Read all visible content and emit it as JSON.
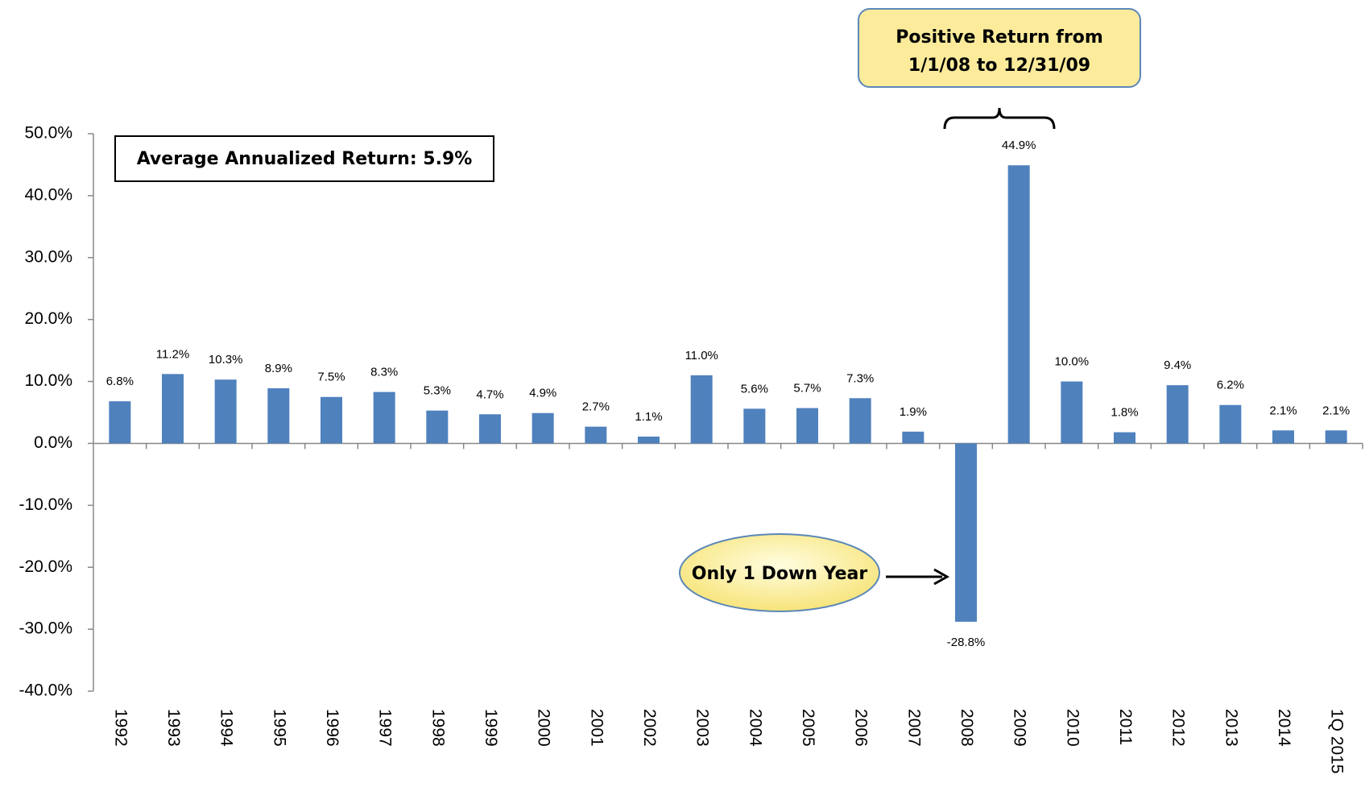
{
  "chart_data": {
    "type": "bar",
    "categories": [
      "1992",
      "1993",
      "1994",
      "1995",
      "1996",
      "1997",
      "1998",
      "1999",
      "2000",
      "2001",
      "2002",
      "2003",
      "2004",
      "2005",
      "2006",
      "2007",
      "2008",
      "2009",
      "2010",
      "2011",
      "2012",
      "2013",
      "2014",
      "1Q 2015"
    ],
    "values": [
      6.8,
      11.2,
      10.3,
      8.9,
      7.5,
      8.3,
      5.3,
      4.7,
      4.9,
      2.7,
      1.1,
      11.0,
      5.6,
      5.7,
      7.3,
      1.9,
      -28.8,
      44.9,
      10.0,
      1.8,
      9.4,
      6.2,
      2.1,
      2.1
    ],
    "value_labels": [
      "6.8%",
      "11.2%",
      "10.3%",
      "8.9%",
      "7.5%",
      "8.3%",
      "5.3%",
      "4.7%",
      "4.9%",
      "2.7%",
      "1.1%",
      "11.0%",
      "5.6%",
      "5.7%",
      "7.3%",
      "1.9%",
      "-28.8%",
      "44.9%",
      "10.0%",
      "1.8%",
      "9.4%",
      "6.2%",
      "2.1%",
      "2.1%"
    ],
    "color": "#4f81bd",
    "ylim": [
      -40,
      50
    ],
    "yticks": [
      {
        "value": -40,
        "label": "-40.0%"
      },
      {
        "value": -30,
        "label": "-30.0%"
      },
      {
        "value": -20,
        "label": "-20.0%"
      },
      {
        "value": -10,
        "label": "-10.0%"
      },
      {
        "value": 0,
        "label": "0.0%"
      },
      {
        "value": 10,
        "label": "10.0%"
      },
      {
        "value": 20,
        "label": "20.0%"
      },
      {
        "value": 30,
        "label": "30.0%"
      },
      {
        "value": 40,
        "label": "40.0%"
      },
      {
        "value": 50,
        "label": "50.0%"
      }
    ],
    "grid": false,
    "annotations": [
      "Average Annualized Return:  5.9%",
      "Positive Return from",
      "1/1/08 to 12/31/09",
      "Only 1 Down Year"
    ]
  }
}
